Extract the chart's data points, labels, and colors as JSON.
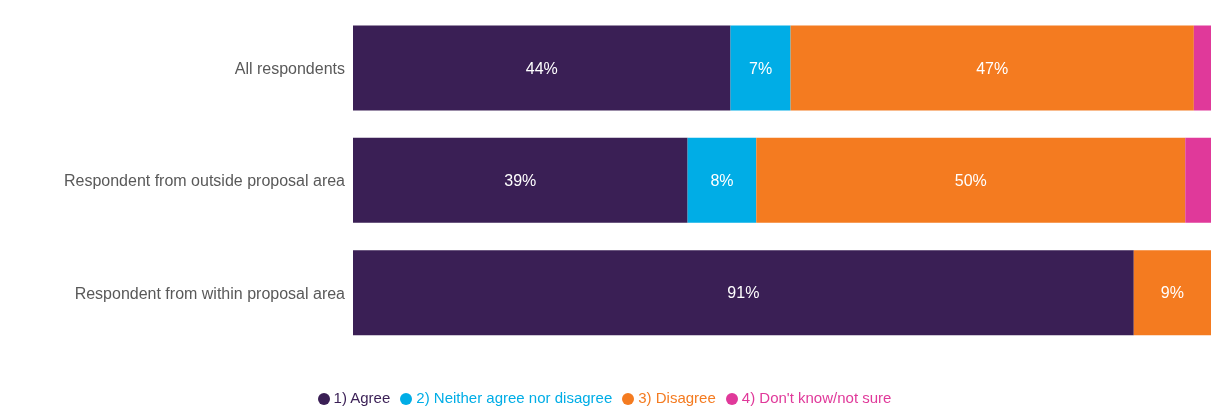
{
  "chart_data": {
    "type": "bar",
    "orientation": "horizontal",
    "stacked": true,
    "categories": [
      "All respondents",
      "Respondent from outside proposal area",
      "Respondent from within proposal area"
    ],
    "series": [
      {
        "name": "1) Agree",
        "color": "#3a1f55",
        "values": [
          44,
          39,
          91
        ],
        "value_labels": [
          "44%",
          "39%",
          "91%"
        ]
      },
      {
        "name": "2) Neither agree nor disagree",
        "color": "#00ade6",
        "values": [
          7,
          8,
          0
        ],
        "value_labels": [
          "7%",
          "8%",
          null
        ]
      },
      {
        "name": "3) Disagree",
        "color": "#f47b20",
        "values": [
          47,
          50,
          9
        ],
        "value_labels": [
          "47%",
          "50%",
          "9%"
        ]
      },
      {
        "name": "4) Don't know/not sure",
        "color": "#e0399a",
        "values": [
          2,
          3,
          0
        ],
        "value_labels": [
          null,
          null,
          null
        ]
      }
    ],
    "xlim": [
      0,
      100
    ],
    "tick_labels": "y",
    "legend": "bottom",
    "grid": false
  }
}
